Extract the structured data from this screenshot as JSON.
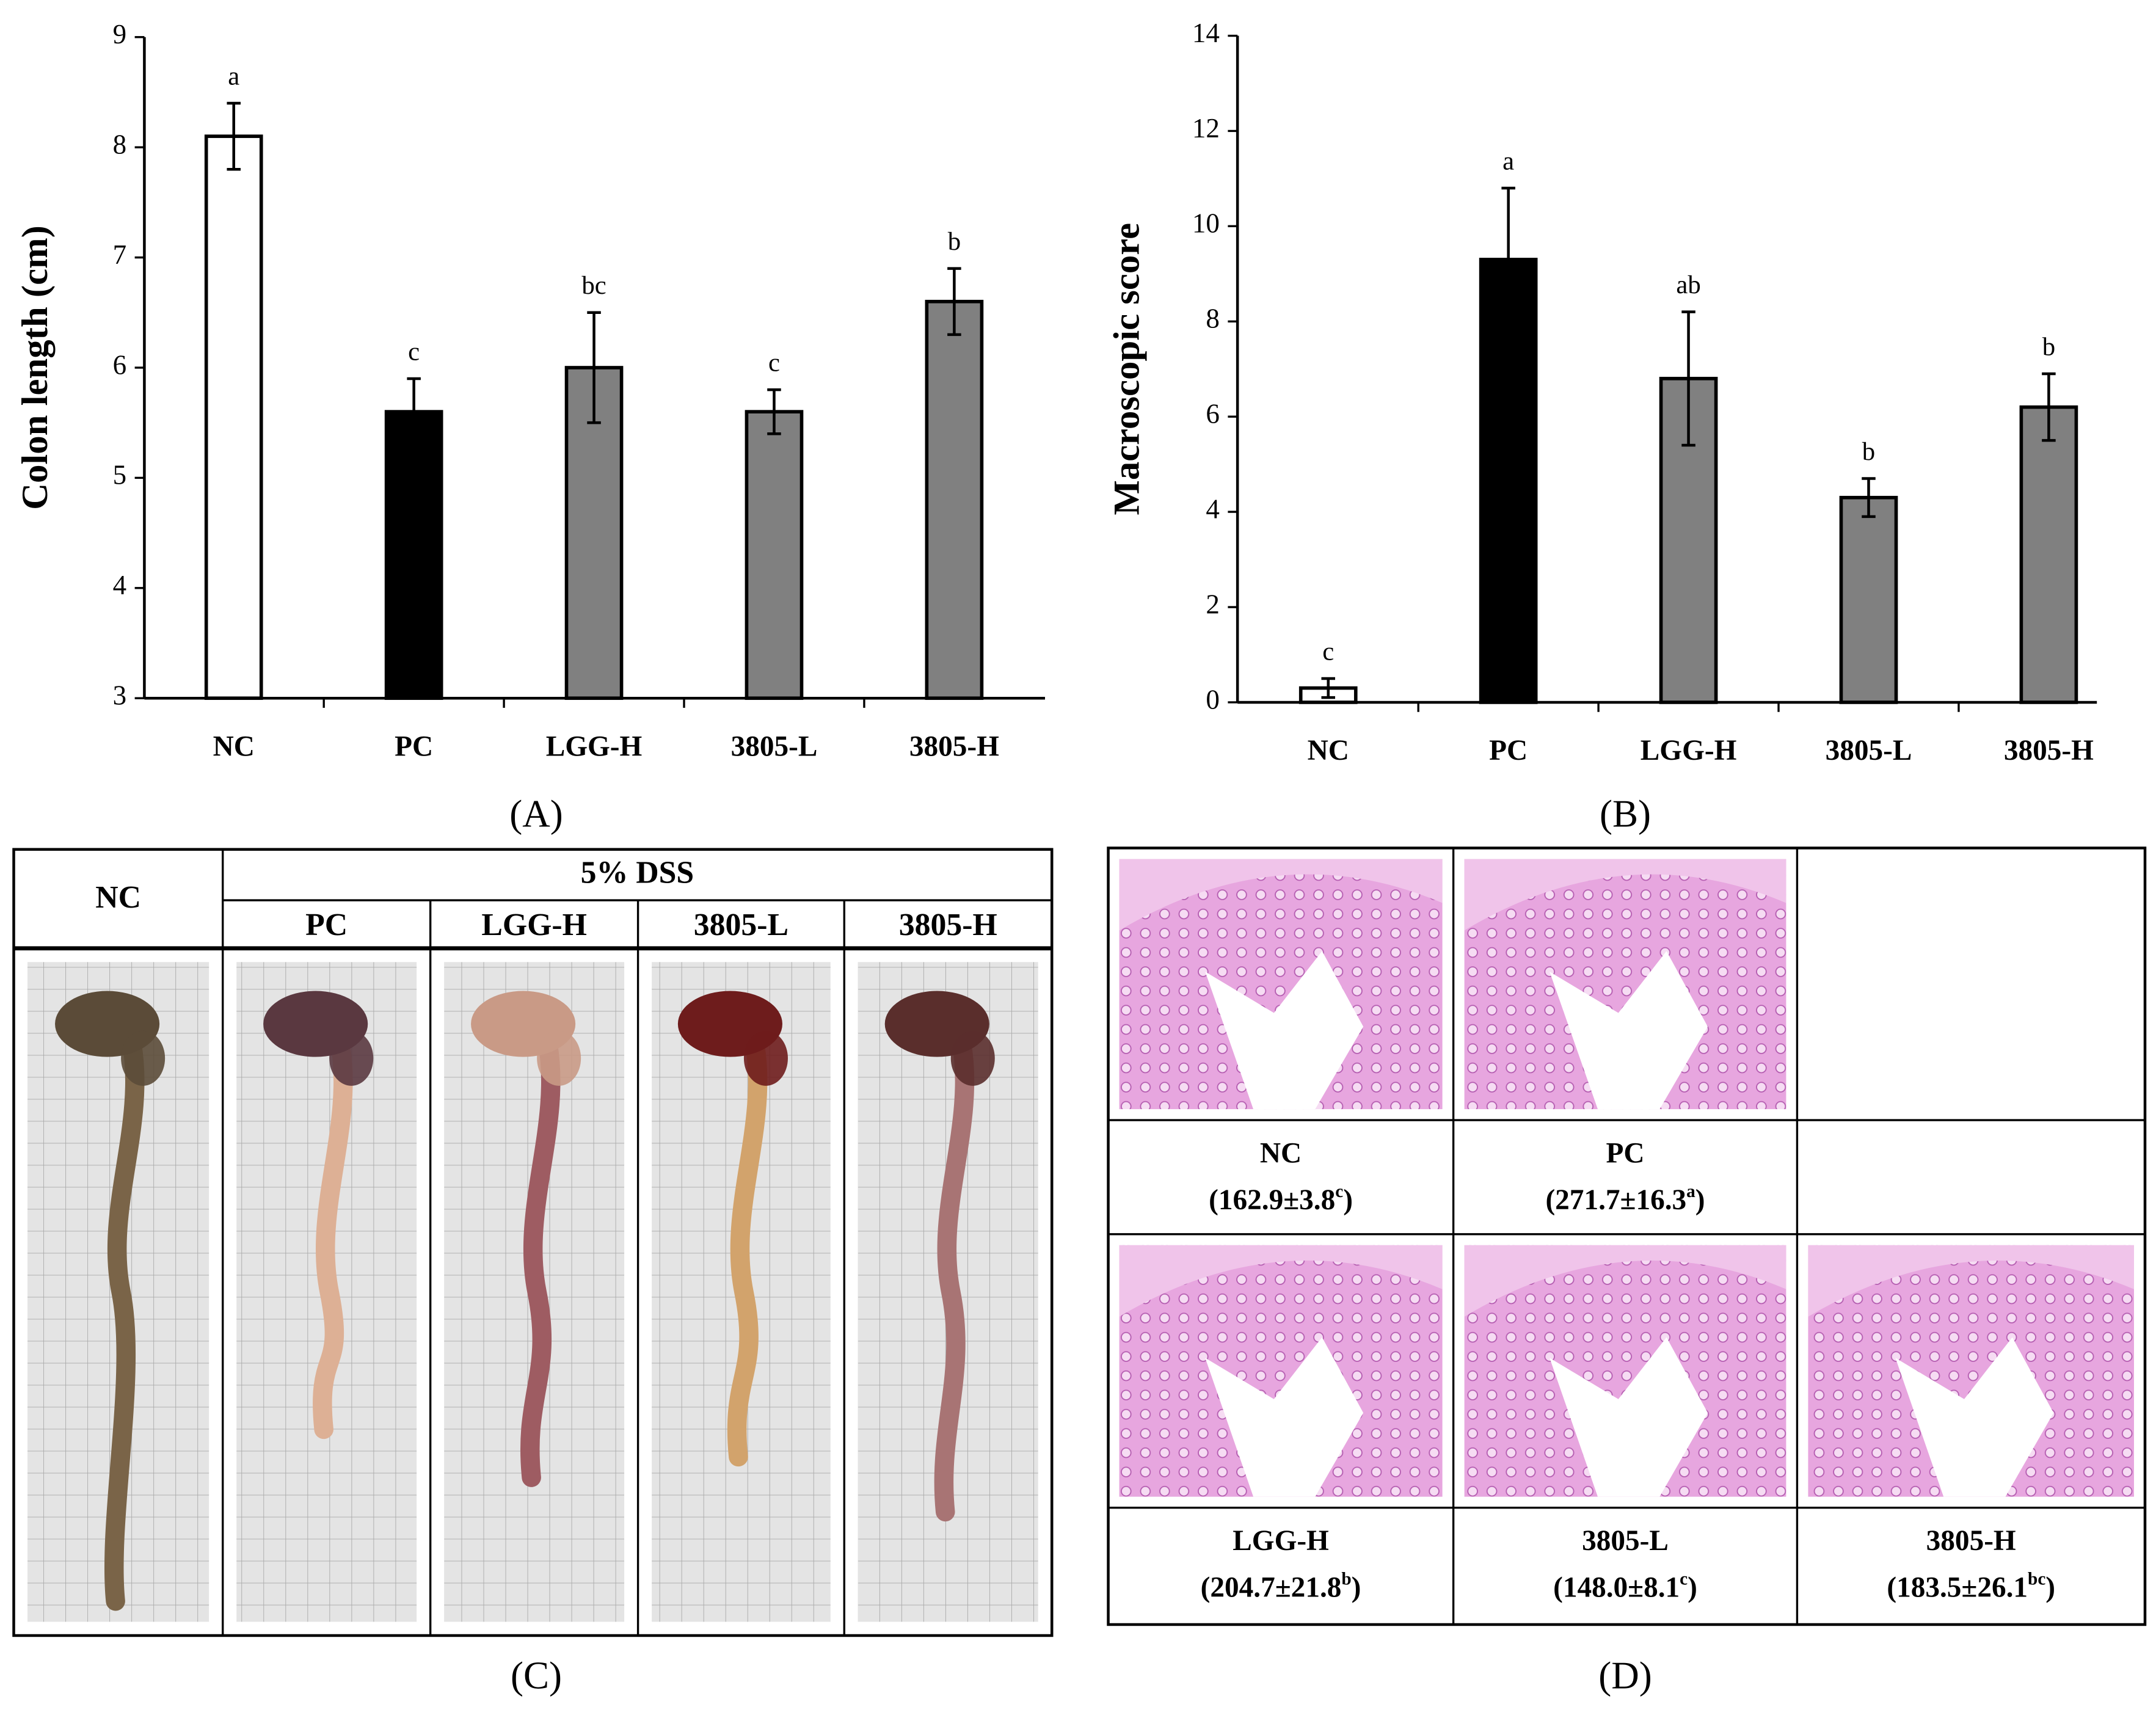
{
  "chart_data": [
    {
      "type": "bar",
      "panel": "(A)",
      "ylabel": "Colon length (cm)",
      "categories": [
        "NC",
        "PC",
        "LGG-H",
        "3805-L",
        "3805-H"
      ],
      "values": [
        8.1,
        5.6,
        6.0,
        5.6,
        6.6
      ],
      "errors": [
        0.3,
        0.3,
        0.5,
        0.2,
        0.3
      ],
      "annotations": [
        "a",
        "c",
        "bc",
        "c",
        "b"
      ],
      "colors": [
        "#ffffff",
        "#000000",
        "#808080",
        "#808080",
        "#808080"
      ],
      "ylim": [
        3,
        9
      ],
      "yticks": [
        3,
        4,
        5,
        6,
        7,
        8,
        9
      ]
    },
    {
      "type": "bar",
      "panel": "(B)",
      "ylabel": "Macroscopic score",
      "categories": [
        "NC",
        "PC",
        "LGG-H",
        "3805-L",
        "3805-H"
      ],
      "values": [
        0.3,
        9.3,
        6.8,
        4.3,
        6.2
      ],
      "errors": [
        0.2,
        1.5,
        1.4,
        0.4,
        0.7
      ],
      "annotations": [
        "c",
        "a",
        "ab",
        "b",
        "b"
      ],
      "colors": [
        "#ffffff",
        "#000000",
        "#808080",
        "#808080",
        "#808080"
      ],
      "ylim": [
        0,
        14
      ],
      "yticks": [
        0,
        2,
        4,
        6,
        8,
        10,
        12,
        14
      ]
    }
  ],
  "photo_panel": {
    "panel": "(C)",
    "group": "5% DSS",
    "columns": [
      "NC",
      "PC",
      "LGG-H",
      "3805-L",
      "3805-H"
    ]
  },
  "histology_panel": {
    "panel": "(D)",
    "samples": [
      {
        "name": "NC",
        "label": [
          "(162.9±3.8",
          "c",
          ")"
        ]
      },
      {
        "name": "PC",
        "label": [
          "(271.7±16.3",
          "a",
          ")"
        ]
      },
      {
        "name": "LGG-H",
        "label": [
          "(204.7±21.8",
          "b",
          ")"
        ]
      },
      {
        "name": "3805-L",
        "label": [
          "(148.0±8.1",
          "c",
          ")"
        ]
      },
      {
        "name": "3805-H",
        "label": [
          "(183.5±26.1",
          "bc",
          ")"
        ]
      }
    ]
  }
}
